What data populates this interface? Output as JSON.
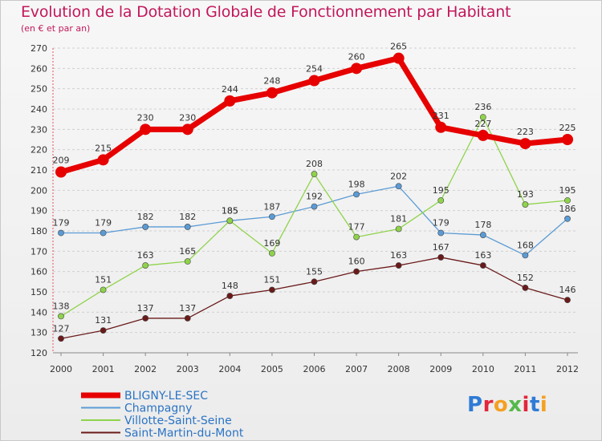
{
  "title": "Evolution de la Dotation Globale de Fonctionnement par Habitant",
  "subtitle": "(en € et par an)",
  "logo": {
    "text": "Proxiti"
  },
  "chart_data": {
    "type": "line",
    "x": [
      "2000",
      "2001",
      "2002",
      "2003",
      "2004",
      "2005",
      "2006",
      "2007",
      "2008",
      "2009",
      "2010",
      "2011",
      "2012"
    ],
    "ylim": [
      120,
      270
    ],
    "yticks": [
      120,
      130,
      140,
      150,
      160,
      170,
      180,
      190,
      200,
      210,
      220,
      230,
      240,
      250,
      260,
      270
    ],
    "grid": "horizontal dashed",
    "legend_placement": "bottom-left",
    "series": [
      {
        "name": "BLIGNY-LE-SEC",
        "color": "#e60000",
        "emphasis": true,
        "values": [
          209,
          215,
          230,
          230,
          244,
          248,
          254,
          260,
          265,
          231,
          227,
          223,
          225
        ]
      },
      {
        "name": "Champagny",
        "color": "#5b9bd5",
        "emphasis": false,
        "values": [
          179,
          179,
          182,
          182,
          185,
          187,
          192,
          198,
          202,
          179,
          178,
          168,
          186
        ]
      },
      {
        "name": "Villotte-Saint-Seine",
        "color": "#8fd34a",
        "emphasis": false,
        "values": [
          138,
          151,
          163,
          165,
          185,
          169,
          208,
          177,
          181,
          195,
          236,
          193,
          195
        ]
      },
      {
        "name": "Saint-Martin-du-Mont",
        "color": "#6b1a1a",
        "emphasis": false,
        "values": [
          127,
          131,
          137,
          137,
          148,
          151,
          155,
          160,
          163,
          167,
          163,
          152,
          146
        ]
      }
    ]
  }
}
